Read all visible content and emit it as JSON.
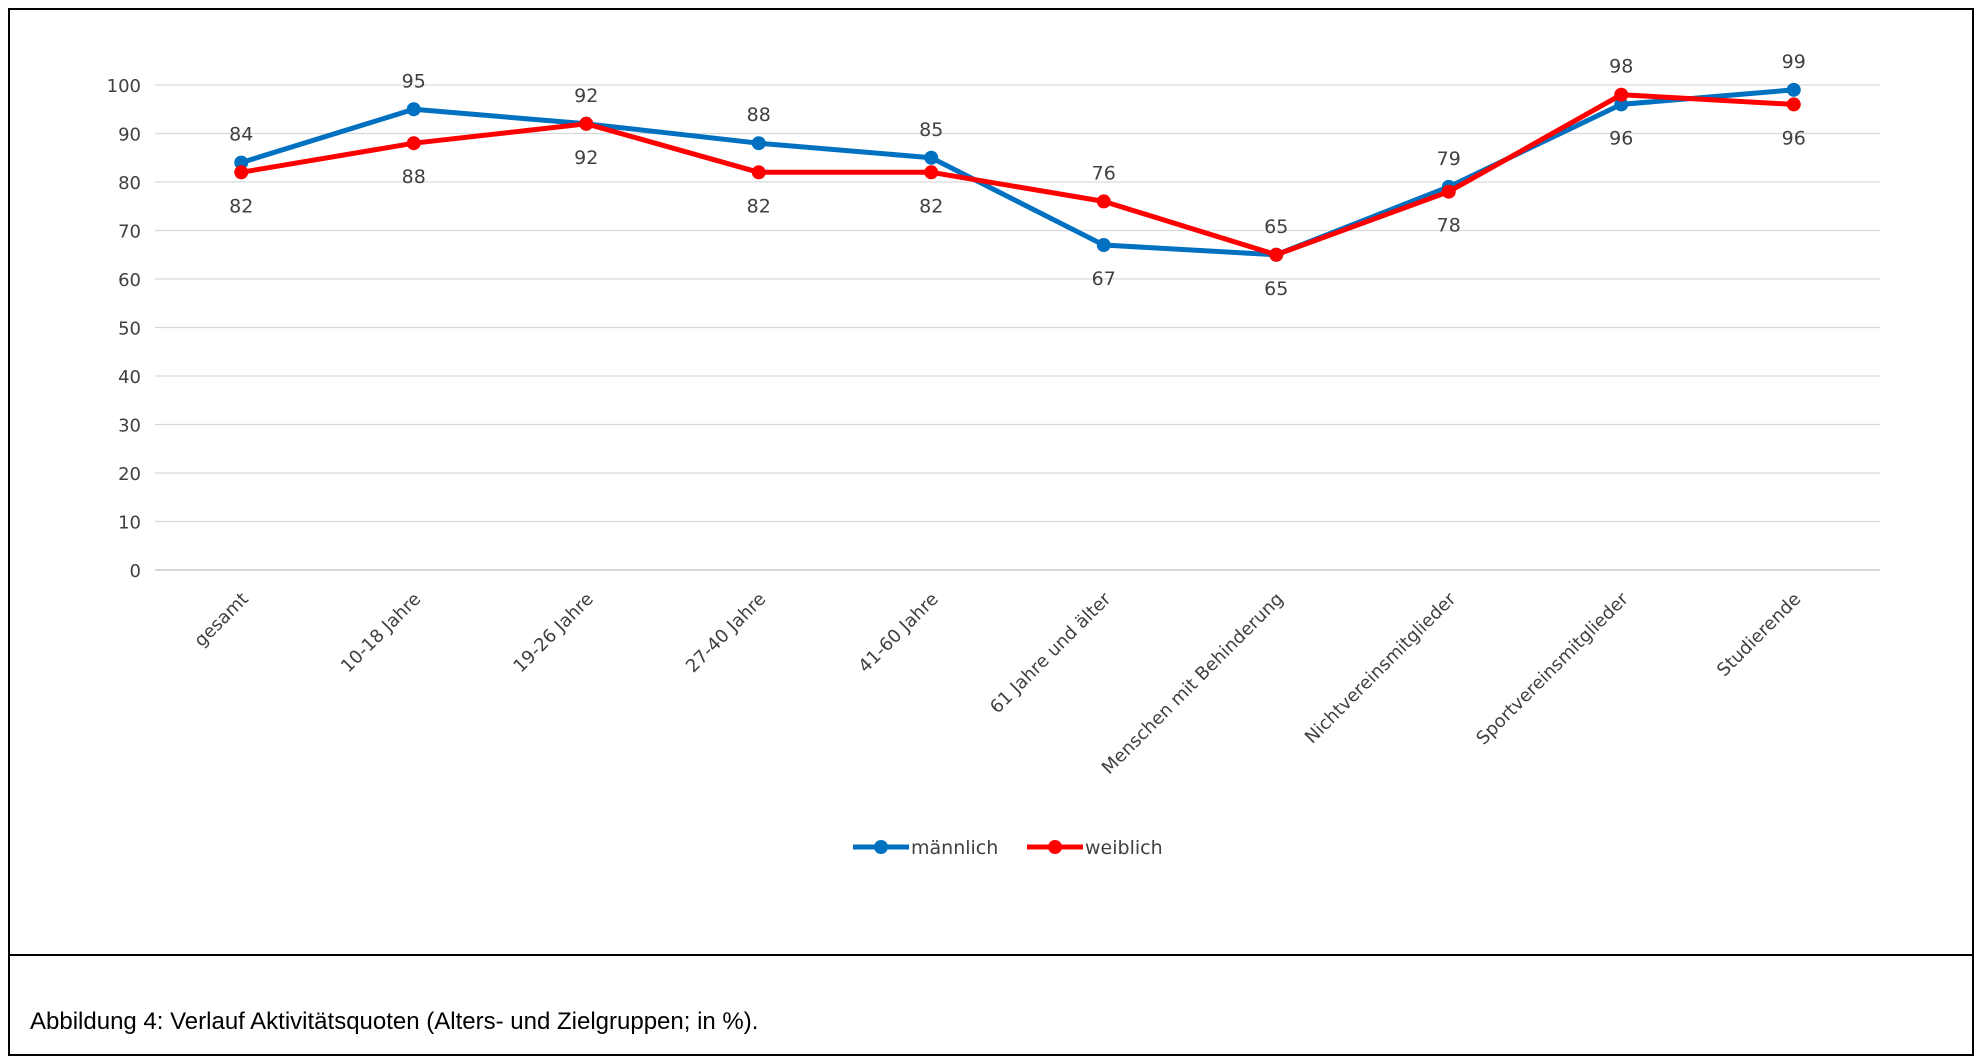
{
  "caption": "Abbildung 4: Verlauf Aktivitätsquoten (Alters- und Zielgruppen; in %).",
  "chart_data": {
    "type": "line",
    "title": "",
    "xlabel": "",
    "ylabel": "",
    "ylim": [
      0,
      100
    ],
    "yticks": [
      "0",
      "10",
      "20",
      "30",
      "40",
      "50",
      "60",
      "70",
      "80",
      "90",
      "100"
    ],
    "grid": true,
    "legend_position": "bottom-center",
    "categories": [
      "gesamt",
      "10-18 Jahre",
      "19-26 Jahre",
      "27-40 Jahre",
      "41-60 Jahre",
      "61 Jahre und älter",
      "Menschen mit Behinderung",
      "Nichtvereinsmitglieder",
      "Sportvereinsmitglieder",
      "Studierende"
    ],
    "series": [
      {
        "name": "männlich",
        "color": "#0070C0",
        "values": [
          84,
          95,
          92,
          88,
          85,
          67,
          65,
          79,
          96,
          99
        ],
        "labels": [
          "84",
          "95",
          "92",
          "88",
          "85",
          "67",
          "65",
          "79",
          "96",
          "99"
        ]
      },
      {
        "name": "weiblich",
        "color": "#FF0000",
        "values": [
          82,
          88,
          92,
          82,
          82,
          76,
          65,
          78,
          98,
          96
        ],
        "labels": [
          "82",
          "88",
          "92",
          "82",
          "82",
          "76",
          "65",
          "78",
          "98",
          "96"
        ]
      }
    ]
  }
}
